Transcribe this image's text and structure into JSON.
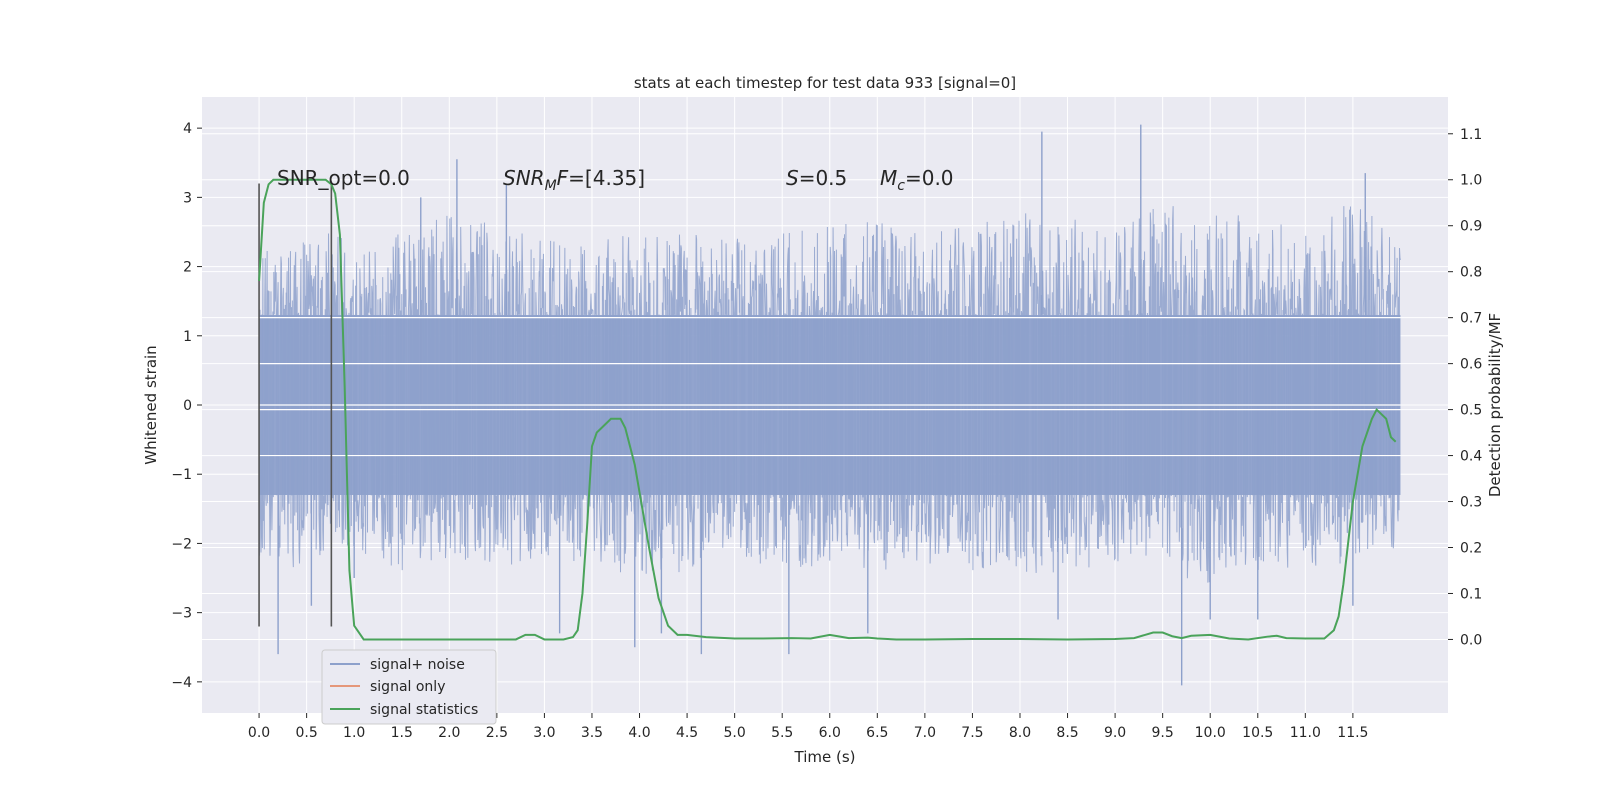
{
  "chart_data": {
    "type": "line",
    "title": "stats at each timestep for test data 933 [signal=0]",
    "xlabel": "Time (s)",
    "ylabel": "Whitened strain",
    "y2label": "Detection probability/MF",
    "xlim": [
      -0.6,
      12.5
    ],
    "ylim": [
      -4.45,
      4.45
    ],
    "y2lim": [
      -0.16,
      1.18
    ],
    "grid": true,
    "xticks": [
      "0.0",
      "0.5",
      "1.0",
      "1.5",
      "2.0",
      "2.5",
      "3.0",
      "3.5",
      "4.0",
      "4.5",
      "5.0",
      "5.5",
      "6.0",
      "6.5",
      "7.0",
      "7.5",
      "8.0",
      "8.5",
      "9.0",
      "9.5",
      "10.0",
      "10.5",
      "11.0",
      "11.5"
    ],
    "xtick_values": [
      0,
      0.5,
      1,
      1.5,
      2,
      2.5,
      3,
      3.5,
      4,
      4.5,
      5,
      5.5,
      6,
      6.5,
      7,
      7.5,
      8,
      8.5,
      9,
      9.5,
      10,
      10.5,
      11,
      11.5
    ],
    "yticks": [
      "4",
      "3",
      "2",
      "1",
      "0",
      "−1",
      "−2",
      "−3",
      "−4"
    ],
    "ytick_values": [
      4,
      3,
      2,
      1,
      0,
      -1,
      -2,
      -3,
      -4
    ],
    "y2ticks": [
      "1.1",
      "1.0",
      "0.9",
      "0.8",
      "0.7",
      "0.6",
      "0.5",
      "0.4",
      "0.3",
      "0.2",
      "0.1",
      "0.0"
    ],
    "y2tick_values": [
      1.1,
      1.0,
      0.9,
      0.8,
      0.7,
      0.6,
      0.5,
      0.4,
      0.3,
      0.2,
      0.1,
      0.0
    ],
    "annotations": {
      "snr_opt": "SNR_opt=0.0",
      "snr_mf_main": "SNR",
      "snr_mf_sub": "M",
      "snr_mf_rest": "F=[4.35]",
      "s_main": "S",
      "s_rest": "=0.5",
      "mc_main": "M",
      "mc_sub": "c",
      "mc_rest": "=0.0"
    },
    "vlines": [
      0.0,
      0.76
    ],
    "vline_ylim": [
      -3.2,
      3.2
    ],
    "series": [
      {
        "name": "signal+ noise",
        "color": "#8da0cb",
        "axis": "left",
        "envelope": {
          "t": [
            0,
            0.25,
            0.5,
            0.75,
            1.0,
            1.5,
            2.0,
            2.5,
            3.0,
            3.5,
            4.0,
            4.5,
            5.0,
            5.5,
            6.0,
            6.5,
            7.0,
            7.5,
            8.0,
            8.5,
            9.0,
            9.5,
            10.0,
            10.5,
            11.0,
            11.5,
            12.0
          ],
          "upper": [
            2.4,
            2.3,
            2.4,
            2.6,
            2.2,
            2.5,
            2.8,
            2.6,
            2.4,
            2.3,
            2.6,
            2.5,
            2.4,
            2.5,
            2.6,
            2.7,
            2.5,
            2.6,
            2.8,
            2.7,
            2.6,
            2.9,
            2.8,
            2.7,
            2.6,
            3.0,
            2.4
          ],
          "lower": [
            -2.2,
            -2.4,
            -2.5,
            -2.3,
            -2.2,
            -2.4,
            -2.3,
            -2.4,
            -2.2,
            -2.3,
            -2.5,
            -2.4,
            -2.2,
            -2.4,
            -2.3,
            -2.4,
            -2.3,
            -2.4,
            -2.5,
            -2.4,
            -2.3,
            -2.4,
            -2.6,
            -2.5,
            -2.3,
            -2.5,
            -2.0
          ]
        },
        "spikes": [
          [
            0.2,
            -3.6
          ],
          [
            0.55,
            -2.9
          ],
          [
            1.0,
            -2.5
          ],
          [
            2.08,
            3.55
          ],
          [
            2.6,
            3.2
          ],
          [
            3.16,
            -3.3
          ],
          [
            3.95,
            -3.5
          ],
          [
            4.23,
            -3.3
          ],
          [
            4.65,
            -3.6
          ],
          [
            5.57,
            -3.6
          ],
          [
            8.23,
            3.95
          ],
          [
            9.27,
            4.05
          ],
          [
            9.7,
            -4.05
          ],
          [
            10.0,
            -3.1
          ],
          [
            10.5,
            -3.1
          ],
          [
            11.5,
            -2.9
          ],
          [
            11.63,
            3.35
          ],
          [
            8.4,
            -3.1
          ],
          [
            1.7,
            3.0
          ],
          [
            6.4,
            -3.3
          ]
        ]
      },
      {
        "name": "signal only",
        "color": "#e5977a",
        "axis": "left",
        "values": []
      },
      {
        "name": "signal statistics",
        "color": "#4aa35a",
        "axis": "right",
        "x": [
          0.0,
          0.05,
          0.1,
          0.15,
          0.2,
          0.3,
          0.4,
          0.5,
          0.6,
          0.7,
          0.76,
          0.8,
          0.85,
          0.9,
          0.95,
          1.0,
          1.1,
          1.5,
          2.0,
          2.5,
          2.7,
          2.8,
          2.9,
          3.0,
          3.2,
          3.3,
          3.35,
          3.4,
          3.45,
          3.5,
          3.55,
          3.6,
          3.7,
          3.8,
          3.85,
          3.9,
          3.95,
          4.0,
          4.1,
          4.2,
          4.3,
          4.4,
          4.5,
          4.7,
          5.0,
          5.3,
          5.6,
          5.8,
          6.0,
          6.2,
          6.4,
          6.5,
          6.7,
          7.0,
          7.5,
          8.0,
          8.5,
          9.0,
          9.2,
          9.4,
          9.5,
          9.6,
          9.7,
          9.8,
          10.0,
          10.2,
          10.4,
          10.6,
          10.7,
          10.8,
          11.0,
          11.2,
          11.3,
          11.35,
          11.4,
          11.5,
          11.6,
          11.7,
          11.75,
          11.8,
          11.85,
          11.9,
          11.95
        ],
        "y": [
          0.78,
          0.95,
          0.99,
          1.0,
          1.0,
          1.0,
          1.0,
          1.0,
          1.0,
          1.0,
          0.99,
          0.97,
          0.88,
          0.55,
          0.15,
          0.03,
          0.0,
          0.0,
          0.0,
          0.0,
          0.0,
          0.01,
          0.01,
          0.0,
          0.0,
          0.005,
          0.02,
          0.1,
          0.25,
          0.42,
          0.45,
          0.46,
          0.48,
          0.48,
          0.46,
          0.42,
          0.38,
          0.32,
          0.2,
          0.09,
          0.03,
          0.01,
          0.01,
          0.005,
          0.002,
          0.002,
          0.003,
          0.002,
          0.01,
          0.003,
          0.004,
          0.002,
          0.0,
          0.0,
          0.001,
          0.001,
          0.0,
          0.001,
          0.003,
          0.015,
          0.015,
          0.007,
          0.003,
          0.008,
          0.01,
          0.002,
          0.0,
          0.006,
          0.008,
          0.003,
          0.002,
          0.002,
          0.02,
          0.05,
          0.12,
          0.3,
          0.42,
          0.48,
          0.5,
          0.49,
          0.48,
          0.44,
          0.43
        ]
      }
    ],
    "legend": {
      "position": "lower-left",
      "entries": [
        "signal+ noise",
        "signal only",
        "signal statistics"
      ]
    }
  }
}
